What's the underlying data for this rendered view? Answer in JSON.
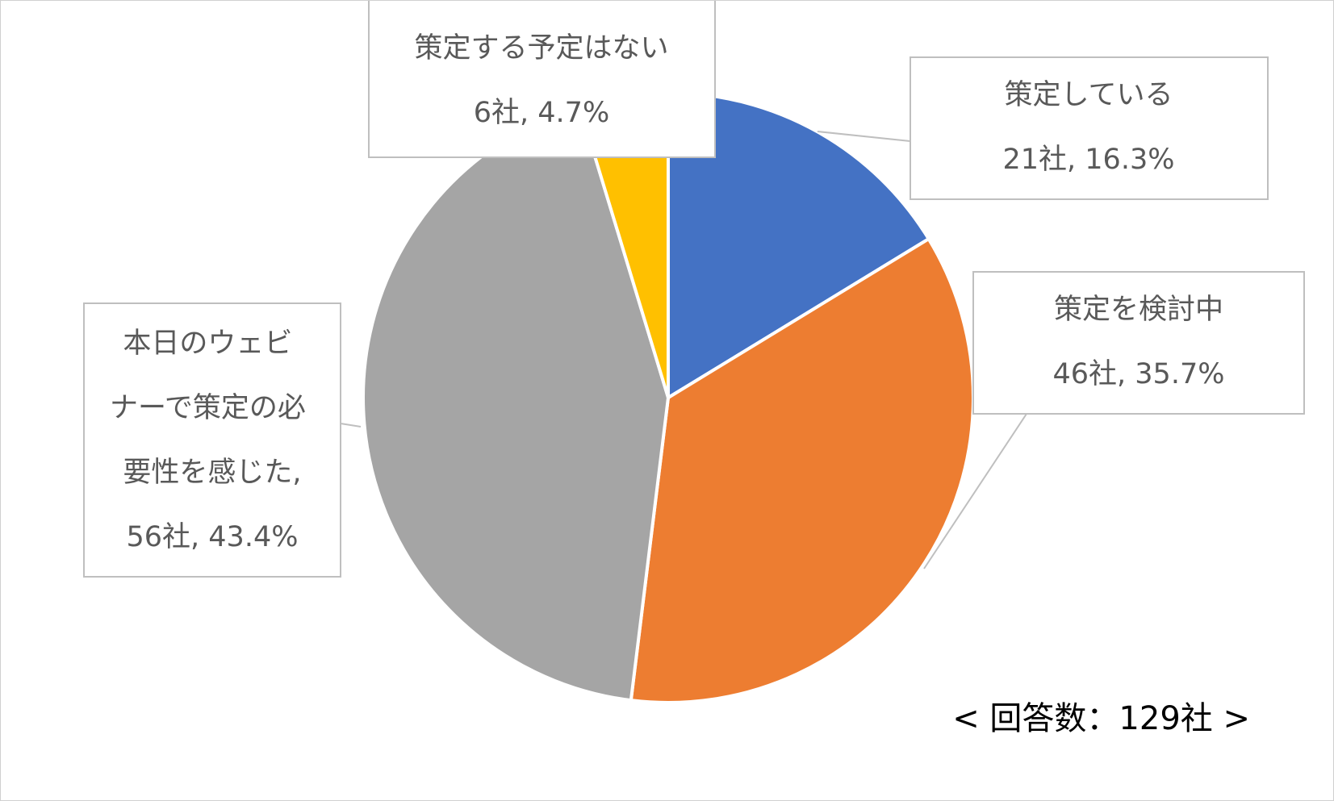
{
  "chart_data": {
    "type": "pie",
    "title": "",
    "start_angle_deg": 0,
    "direction": "clockwise",
    "slices": [
      {
        "label": "策定している",
        "value_text": "21社, 16.3%",
        "count": 21,
        "percent": 16.3,
        "color": "#4472C4"
      },
      {
        "label": "策定を検討中",
        "value_text": "46社, 35.7%",
        "count": 46,
        "percent": 35.7,
        "color": "#ED7D31"
      },
      {
        "label": "本日のウェビナーで策定の必要性を感じた,",
        "value_text": "56社, 43.4%",
        "count": 56,
        "percent": 43.4,
        "color": "#A5A5A5"
      },
      {
        "label": "策定する予定はない",
        "value_text": "6社, 4.7%",
        "count": 6,
        "percent": 4.7,
        "color": "#FFC000"
      }
    ],
    "label_style": "callout"
  },
  "footnote": "< 回答数：129社 >"
}
